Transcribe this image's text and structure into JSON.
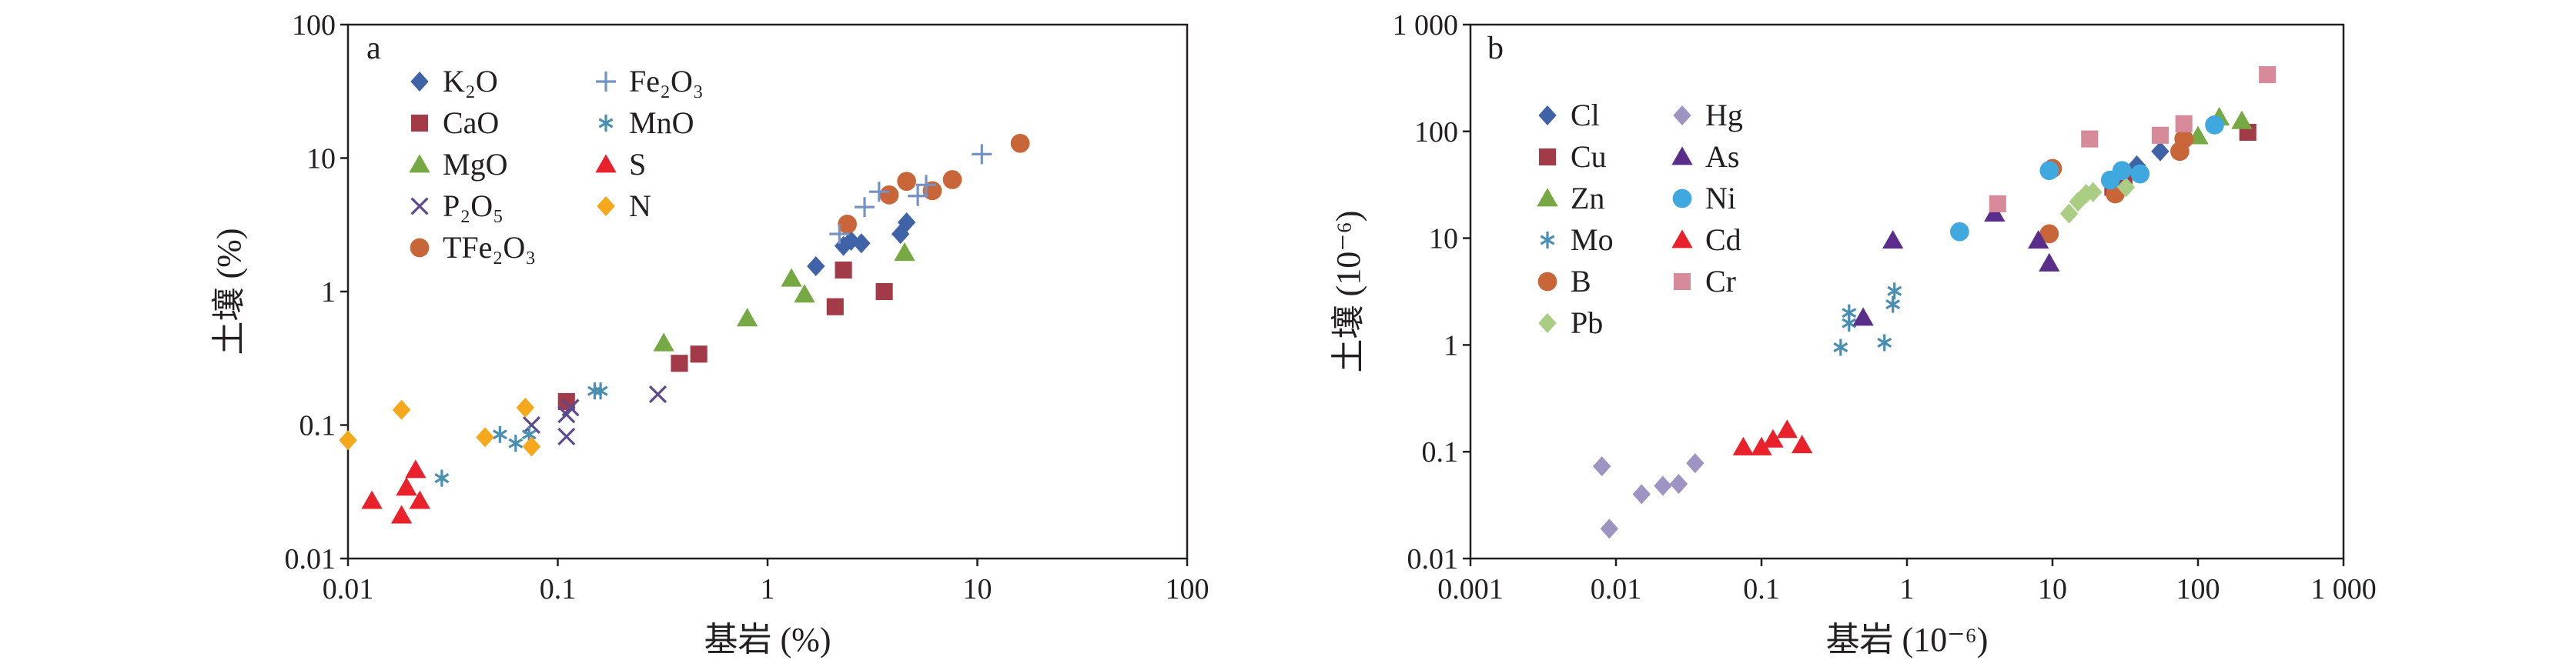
{
  "chart_data": [
    {
      "type": "scatter",
      "panel_label": "a",
      "xlabel": "基岩 (%)",
      "ylabel": "土壤 (%)",
      "xscale": "log",
      "yscale": "log",
      "xlim": [
        0.01,
        100
      ],
      "ylim": [
        0.01,
        100
      ],
      "x_tick_labels": [
        "0.01",
        "0.1",
        "1",
        "10",
        "100"
      ],
      "y_tick_labels": [
        "0.01",
        "0.1",
        "1",
        "10",
        "100"
      ],
      "legend_columns": 2,
      "series": [
        {
          "name": "K₂O",
          "marker": "diamond",
          "color": "#3f63a6",
          "points": [
            [
              1.7,
              1.55
            ],
            [
              2.3,
              2.2
            ],
            [
              2.5,
              2.4
            ],
            [
              2.8,
              2.3
            ],
            [
              4.3,
              2.7
            ],
            [
              4.6,
              3.3
            ]
          ]
        },
        {
          "name": "CaO",
          "marker": "square",
          "color": "#a23a48",
          "points": [
            [
              0.11,
              0.15
            ],
            [
              0.38,
              0.29
            ],
            [
              0.47,
              0.34
            ],
            [
              2.1,
              0.77
            ],
            [
              2.3,
              1.45
            ],
            [
              3.6,
              1.0
            ]
          ]
        },
        {
          "name": "MgO",
          "marker": "triangle",
          "color": "#76a843",
          "points": [
            [
              0.32,
              0.41
            ],
            [
              0.8,
              0.63
            ],
            [
              1.3,
              1.25
            ],
            [
              1.5,
              0.95
            ],
            [
              4.5,
              1.95
            ]
          ]
        },
        {
          "name": "P₂O₅",
          "marker": "x",
          "color": "#5e4a8e",
          "points": [
            [
              0.075,
              0.1
            ],
            [
              0.11,
              0.082
            ],
            [
              0.11,
              0.12
            ],
            [
              0.115,
              0.135
            ],
            [
              0.3,
              0.17
            ]
          ]
        },
        {
          "name": "TFe₂O₃",
          "marker": "circle",
          "color": "#c8663a",
          "points": [
            [
              2.4,
              3.2
            ],
            [
              3.8,
              5.3
            ],
            [
              4.6,
              6.7
            ],
            [
              6.1,
              5.7
            ],
            [
              7.6,
              6.9
            ],
            [
              16,
              12.9
            ]
          ]
        },
        {
          "name": "Fe₂O₃",
          "marker": "plus",
          "color": "#7592c4",
          "points": [
            [
              2.2,
              2.7
            ],
            [
              2.9,
              4.3
            ],
            [
              3.4,
              5.6
            ],
            [
              5.2,
              5.2
            ],
            [
              5.7,
              6.3
            ],
            [
              10.5,
              10.7
            ]
          ]
        },
        {
          "name": "MnO",
          "marker": "asterisk",
          "color": "#4a8fb1",
          "points": [
            [
              0.028,
              0.04
            ],
            [
              0.053,
              0.085
            ],
            [
              0.063,
              0.073
            ],
            [
              0.073,
              0.085
            ],
            [
              0.15,
              0.18
            ],
            [
              0.16,
              0.18
            ]
          ]
        },
        {
          "name": "S",
          "marker": "triangle",
          "color": "#e8212a",
          "points": [
            [
              0.013,
              0.027
            ],
            [
              0.018,
              0.021
            ],
            [
              0.019,
              0.034
            ],
            [
              0.021,
              0.046
            ],
            [
              0.022,
              0.027
            ]
          ]
        },
        {
          "name": "N",
          "marker": "diamond",
          "color": "#f5a81c",
          "points": [
            [
              0.01,
              0.077
            ],
            [
              0.018,
              0.13
            ],
            [
              0.045,
              0.081
            ],
            [
              0.07,
              0.135
            ],
            [
              0.075,
              0.069
            ]
          ]
        }
      ]
    },
    {
      "type": "scatter",
      "panel_label": "b",
      "xlabel": "基岩 (10⁻⁶)",
      "ylabel": "土壤 (10⁻⁶)",
      "xscale": "log",
      "yscale": "log",
      "xlim": [
        0.001,
        1000
      ],
      "ylim": [
        0.01,
        1000
      ],
      "x_tick_labels": [
        "0.001",
        "0.01",
        "0.1",
        "1",
        "10",
        "100",
        "1 000"
      ],
      "y_tick_labels": [
        "0.01",
        "0.1",
        "1",
        "10",
        "100",
        "1 000"
      ],
      "legend_columns": 2,
      "series": [
        {
          "name": "Cl",
          "marker": "diamond",
          "color": "#3f63a6",
          "points": [
            [
              30,
              33
            ],
            [
              38,
              48
            ],
            [
              55,
              65
            ]
          ]
        },
        {
          "name": "Cu",
          "marker": "square",
          "color": "#a23a48",
          "points": [
            [
              26,
              30
            ],
            [
              31,
              35
            ],
            [
              220,
              98
            ]
          ]
        },
        {
          "name": "Zn",
          "marker": "triangle",
          "color": "#76a843",
          "points": [
            [
              100,
              90
            ],
            [
              140,
              135
            ],
            [
              200,
              125
            ]
          ]
        },
        {
          "name": "Mo",
          "marker": "asterisk",
          "color": "#4a8fb1",
          "points": [
            [
              0.35,
              0.95
            ],
            [
              0.4,
              2.0
            ],
            [
              0.4,
              1.6
            ],
            [
              0.7,
              1.05
            ],
            [
              0.8,
              2.4
            ],
            [
              0.82,
              3.2
            ]
          ]
        },
        {
          "name": "B",
          "marker": "circle",
          "color": "#c8663a",
          "points": [
            [
              9.5,
              11
            ],
            [
              10,
              45
            ],
            [
              27,
              26
            ],
            [
              75,
              65
            ],
            [
              80,
              85
            ]
          ]
        },
        {
          "name": "Pb",
          "marker": "diamond",
          "color": "#a9cd82",
          "points": [
            [
              13,
              17
            ],
            [
              15,
              22
            ],
            [
              17,
              26
            ],
            [
              19,
              27
            ],
            [
              32,
              30
            ]
          ]
        },
        {
          "name": "Hg",
          "marker": "diamond",
          "color": "#9f93c2",
          "points": [
            [
              0.008,
              0.073
            ],
            [
              0.009,
              0.019
            ],
            [
              0.015,
              0.04
            ],
            [
              0.021,
              0.048
            ],
            [
              0.027,
              0.05
            ],
            [
              0.035,
              0.078
            ]
          ]
        },
        {
          "name": "As",
          "marker": "triangle",
          "color": "#5a2d8a",
          "points": [
            [
              0.5,
              1.8
            ],
            [
              0.8,
              9.5
            ],
            [
              4,
              17
            ],
            [
              8,
              9.5
            ],
            [
              9.5,
              5.8
            ]
          ]
        },
        {
          "name": "Ni",
          "marker": "circle",
          "color": "#3fa9df",
          "points": [
            [
              2.3,
              11.5
            ],
            [
              9.5,
              43
            ],
            [
              25,
              35
            ],
            [
              30,
              43
            ],
            [
              40,
              40
            ],
            [
              130,
              115
            ]
          ]
        },
        {
          "name": "Cd",
          "marker": "triangle",
          "color": "#e8212a",
          "points": [
            [
              0.075,
              0.11
            ],
            [
              0.1,
              0.11
            ],
            [
              0.12,
              0.13
            ],
            [
              0.15,
              0.16
            ],
            [
              0.19,
              0.115
            ]
          ]
        },
        {
          "name": "Cr",
          "marker": "square",
          "color": "#d78a9a",
          "points": [
            [
              4.2,
              21
            ],
            [
              18,
              85
            ],
            [
              55,
              92
            ],
            [
              80,
              118
            ],
            [
              300,
              340
            ]
          ]
        }
      ]
    }
  ]
}
